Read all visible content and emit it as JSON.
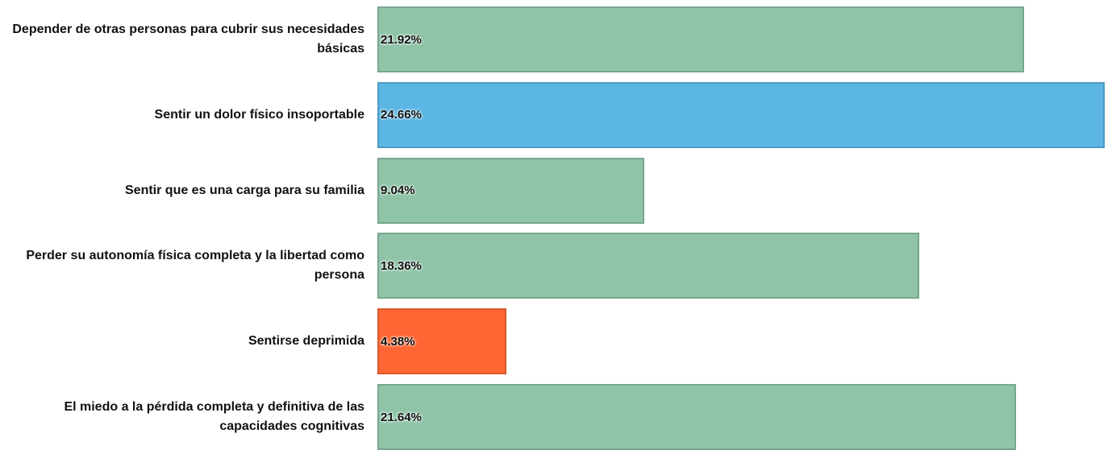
{
  "chart_data": {
    "type": "bar",
    "orientation": "horizontal",
    "categories": [
      "Depender de otras personas para cubrir sus necesidades básicas",
      "Sentir un dolor físico insoportable",
      "Sentir que es una carga para su familia",
      "Perder su autonomía física completa y la libertad como persona",
      "Sentirse deprimida",
      "El miedo a la pérdida completa y definitiva de las capacidades cognitivas"
    ],
    "values": [
      21.92,
      24.66,
      9.04,
      18.36,
      4.38,
      21.64
    ],
    "value_labels": [
      "21.92%",
      "24.66%",
      "9.04%",
      "18.36%",
      "4.38%",
      "21.64%"
    ],
    "colors": [
      "#8fc4a8",
      "#5cb6e4",
      "#8fc4a8",
      "#8fc4a8",
      "#ff6633",
      "#8fc4a8"
    ]
  }
}
